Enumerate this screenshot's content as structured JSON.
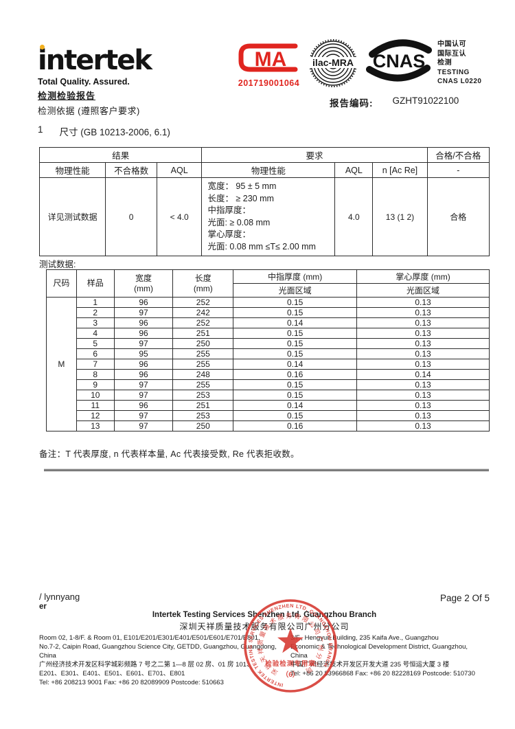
{
  "header": {
    "logo": "intertek",
    "tagline": "Total Quality. Assured.",
    "report_title": "检测检验报告",
    "test_basis": "检测依据 (遵照客户要求)",
    "cma": {
      "letters": "MA",
      "number": "201719001064",
      "color": "#e0251f"
    },
    "ilac": {
      "label": "ilac-MRA"
    },
    "cnas": {
      "label": "CNAS",
      "lines": [
        "中国认可",
        "国际互认",
        "检测",
        "TESTING",
        "CNAS L0220"
      ]
    },
    "report_code_label": "报告编码:",
    "report_code_value": "GZHT91022100"
  },
  "section": {
    "number": "1",
    "title": "尺寸 (GB 10213-2006, 6.1)"
  },
  "result_table": {
    "group_result": "结果",
    "group_requirement": "要求",
    "group_verdict": "合格/不合格",
    "cols": [
      "物理性能",
      "不合格数",
      "AQL",
      "物理性能",
      "AQL",
      "n [Ac Re]",
      "-"
    ],
    "row": {
      "property": "详见测试数据",
      "defects": "0",
      "aql_result": "< 4.0",
      "requirement_lines": [
        "宽度：  95 ± 5 mm",
        "长度：  ≥ 230 mm",
        "中指厚度：",
        "光面: ≥ 0.08 mm",
        "掌心厚度：",
        "光面: 0.08 mm ≤T≤ 2.00 mm"
      ],
      "aql_req": "4.0",
      "n_ac_re": "13 (1  2)",
      "verdict": "合格"
    }
  },
  "test_data": {
    "label": "测试数据:",
    "headers": {
      "size": "尺码",
      "sample": "样品",
      "width": "宽度",
      "length": "长度",
      "unit": "(mm)",
      "middle": "中指厚度 (mm)",
      "palm": "掌心厚度 (mm)",
      "area": "光面区域"
    },
    "size_value": "M",
    "rows": [
      [
        "1",
        "96",
        "252",
        "0.15",
        "0.13"
      ],
      [
        "2",
        "97",
        "242",
        "0.15",
        "0.13"
      ],
      [
        "3",
        "96",
        "252",
        "0.14",
        "0.13"
      ],
      [
        "4",
        "96",
        "251",
        "0.15",
        "0.13"
      ],
      [
        "5",
        "97",
        "250",
        "0.15",
        "0.13"
      ],
      [
        "6",
        "95",
        "255",
        "0.15",
        "0.13"
      ],
      [
        "7",
        "96",
        "255",
        "0.14",
        "0.13"
      ],
      [
        "8",
        "96",
        "248",
        "0.16",
        "0.14"
      ],
      [
        "9",
        "97",
        "255",
        "0.15",
        "0.13"
      ],
      [
        "10",
        "97",
        "253",
        "0.15",
        "0.13"
      ],
      [
        "11",
        "96",
        "251",
        "0.14",
        "0.13"
      ],
      [
        "12",
        "97",
        "253",
        "0.15",
        "0.13"
      ],
      [
        "13",
        "97",
        "250",
        "0.16",
        "0.13"
      ]
    ]
  },
  "note": "备注：T 代表厚度, n 代表样本量, Ac 代表接受数, Re 代表拒收数。",
  "footer": {
    "author_line1": "/ lynnyang",
    "author_line2": "er",
    "page": "Page 2 Of 5",
    "company_en": "Intertek Testing Services Shenzhen Ltd. Guangzhou Branch",
    "company_cn": "深圳天祥质量技术服务有限公司广州分公司",
    "address_left": [
      "Room 02, 1-8/F. & Room 01, E101/E201/E301/E401/E501/E601/E701/E801,",
      "No.7-2, Caipin Road, Guangzhou Science City, GETDD, Guangzhou, Guangdong, China",
      "广州经济技术开发区科学城彩频路 7 号之二第 1—8 层 02 房、01 房 101、",
      "E201、E301、E401、E501、E601、E701、E801",
      "Tel: +86 208213 9001 Fax: +86 20 82089909 Postcode: 510663"
    ],
    "address_right": [
      "3/F., Hengyun Building, 235 Kaifa Ave., Guangzhou",
      "Economic & Technological Development District, Guangzhou,",
      "China",
      "中国广州经济技术开发区开发大道 235 号恒运大厦 3 楼",
      "Tel: +86 20 83966868 Fax: +86 20 82228169 Postcode: 510730"
    ],
    "stamp": {
      "ring_text": "INTERTEK TESTING SERVICES SHENZHEN LTD. GUANGZHOU BRANCH",
      "inner_text": "深圳天祥质量技术服务有限公司广州分公司",
      "center_label": "检验检测专用章",
      "bottom_label": "（6）",
      "color": "#d6362e"
    }
  }
}
